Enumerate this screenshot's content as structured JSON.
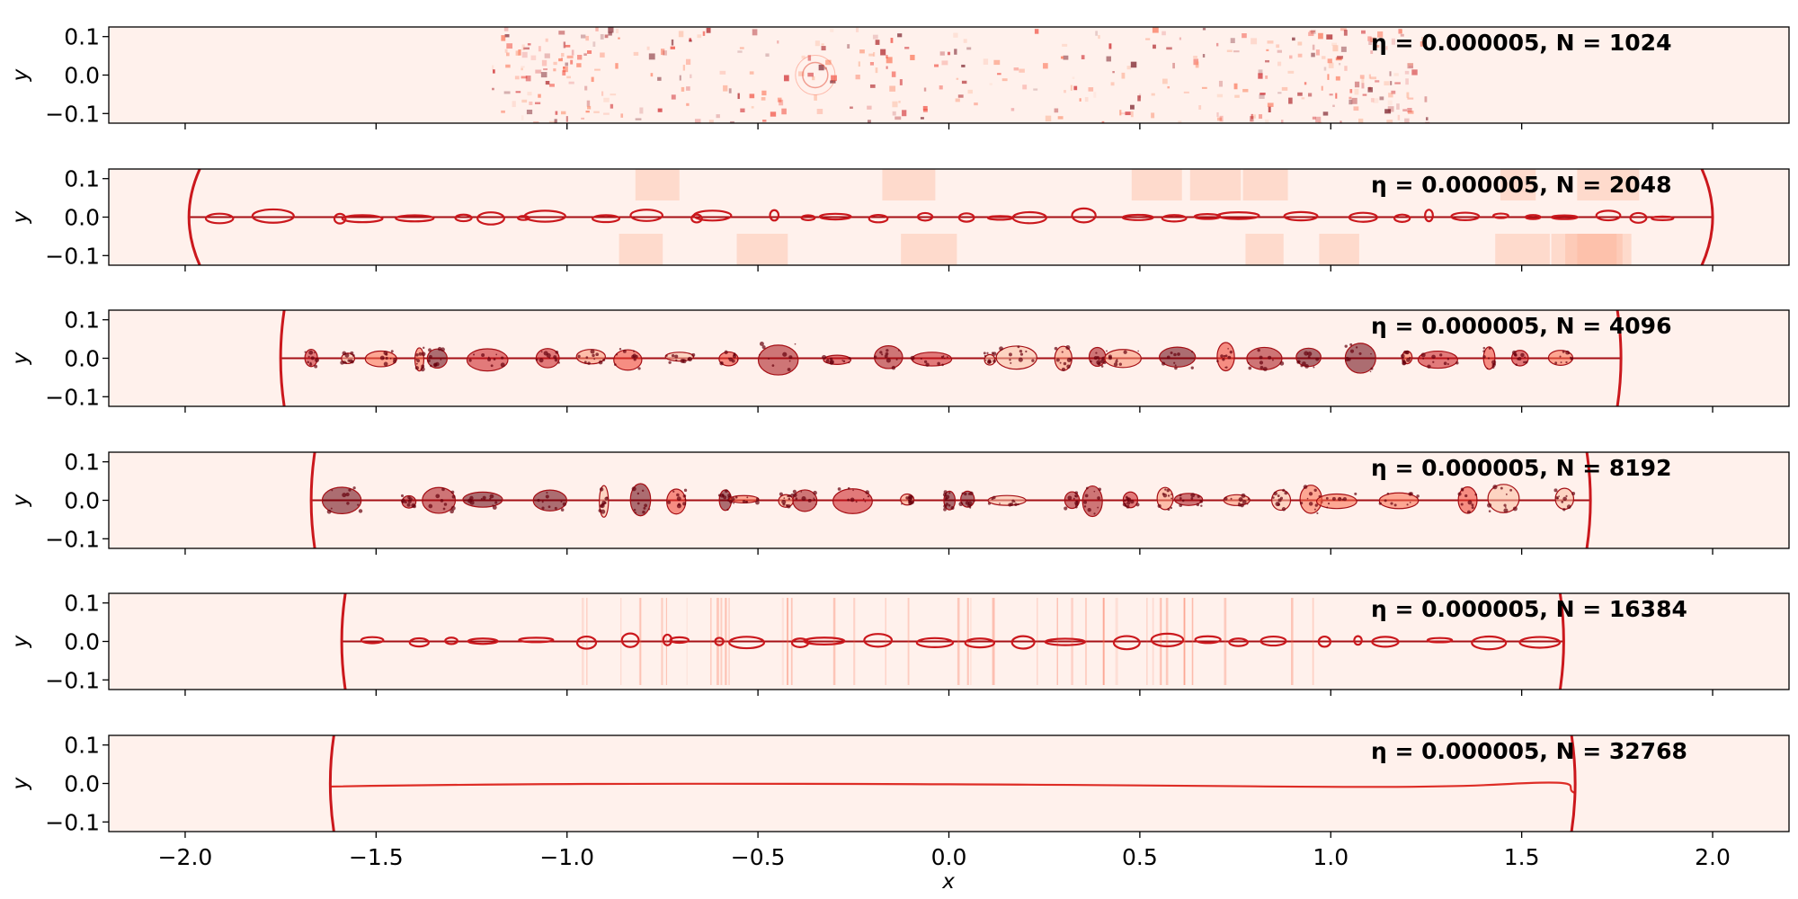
{
  "chart_data": {
    "type": "heatmap",
    "colormap": "Reds",
    "xlabel": "x",
    "ylabel": "y",
    "xlim": [
      -2.2,
      2.2
    ],
    "ylim": [
      -0.125,
      0.125
    ],
    "xticks": [
      -2.0,
      -1.5,
      -1.0,
      -0.5,
      0.0,
      0.5,
      1.0,
      1.5,
      2.0
    ],
    "xtick_labels": [
      "−2.0",
      "−1.5",
      "−1.0",
      "−0.5",
      "0.0",
      "0.5",
      "1.0",
      "1.5",
      "2.0"
    ],
    "yticks": [
      0.1,
      0.0,
      -0.1
    ],
    "ytick_labels": [
      "0.1",
      "0.0",
      "−0.1"
    ],
    "panels": [
      {
        "title": "η = 0.000005, N = 1024",
        "N": 1024,
        "structure": "diffuse",
        "noise_band": [
          -1.2,
          1.25
        ],
        "current_sheet": false,
        "front_left": null,
        "front_right": null
      },
      {
        "title": "η = 0.000005, N = 2048",
        "N": 2048,
        "structure": "plasmoid-chain",
        "current_sheet": true,
        "front_left": -1.99,
        "front_right": 2.0
      },
      {
        "title": "η = 0.000005, N = 4096",
        "N": 4096,
        "structure": "turbulent-plasmoids",
        "current_sheet": true,
        "front_left": -1.75,
        "front_right": 1.76
      },
      {
        "title": "η = 0.000005, N = 8192",
        "N": 8192,
        "structure": "turbulent-plasmoids",
        "current_sheet": true,
        "front_left": -1.67,
        "front_right": 1.68
      },
      {
        "title": "η = 0.000005, N = 16384",
        "N": 16384,
        "structure": "plasmoid-chain",
        "current_sheet": true,
        "front_left": -1.59,
        "front_right": 1.61
      },
      {
        "title": "η = 0.000005, N = 32768",
        "N": 32768,
        "structure": "smooth-sheet",
        "current_sheet": true,
        "front_left": -1.62,
        "front_right": 1.64
      }
    ]
  }
}
